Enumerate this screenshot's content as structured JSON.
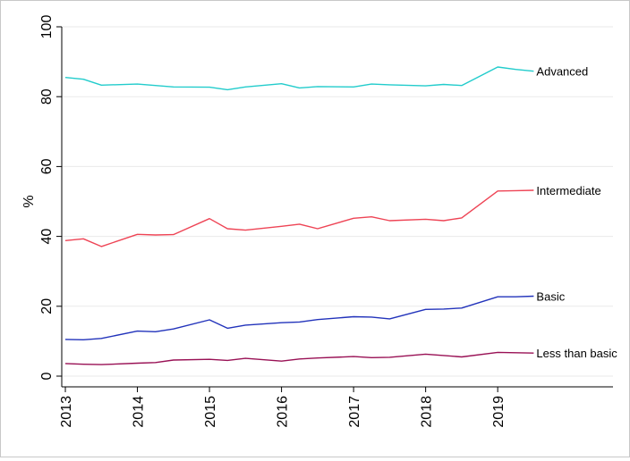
{
  "chart_data": {
    "type": "line",
    "title": "",
    "xlabel": "",
    "ylabel": "%",
    "xlim": [
      2012.95,
      2020.6
    ],
    "ylim": [
      0,
      100
    ],
    "xticks": [
      "2013",
      "2014",
      "2015",
      "2016",
      "2017",
      "2018",
      "2019"
    ],
    "yticks": [
      "0",
      "20",
      "40",
      "60",
      "80",
      "100"
    ],
    "grid": true,
    "legend": "none",
    "x": [
      2013.0,
      2013.25,
      2013.5,
      2014.0,
      2014.25,
      2014.5,
      2015.0,
      2015.25,
      2015.5,
      2016.0,
      2016.25,
      2016.5,
      2017.0,
      2017.25,
      2017.5,
      2018.0,
      2018.25,
      2018.5,
      2019.0,
      2019.25,
      2019.5
    ],
    "series": [
      {
        "name": "Advanced",
        "color": "#22cccc",
        "values": [
          85.5,
          85.0,
          83.3,
          83.6,
          83.2,
          82.8,
          82.7,
          82.0,
          82.8,
          83.7,
          82.5,
          82.9,
          82.8,
          83.6,
          83.4,
          83.1,
          83.5,
          83.2,
          88.5,
          87.8,
          87.3
        ]
      },
      {
        "name": "Intermediate",
        "color": "#ee4455",
        "values": [
          38.8,
          39.3,
          37.1,
          40.6,
          40.4,
          40.5,
          45.1,
          42.2,
          41.8,
          42.9,
          43.5,
          42.2,
          45.2,
          45.6,
          44.5,
          44.9,
          44.5,
          45.3,
          53.0,
          53.1,
          53.2
        ]
      },
      {
        "name": "Basic",
        "color": "#2233bb",
        "values": [
          10.5,
          10.4,
          10.8,
          12.9,
          12.7,
          13.5,
          16.1,
          13.7,
          14.6,
          15.3,
          15.5,
          16.2,
          17.0,
          16.9,
          16.4,
          19.1,
          19.2,
          19.5,
          22.7,
          22.7,
          22.9
        ]
      },
      {
        "name": "Less than basic",
        "color": "#991155",
        "values": [
          3.6,
          3.4,
          3.3,
          3.7,
          3.9,
          4.6,
          4.8,
          4.5,
          5.1,
          4.3,
          4.9,
          5.2,
          5.6,
          5.3,
          5.4,
          6.3,
          5.9,
          5.5,
          6.8,
          6.7,
          6.6
        ]
      }
    ]
  }
}
